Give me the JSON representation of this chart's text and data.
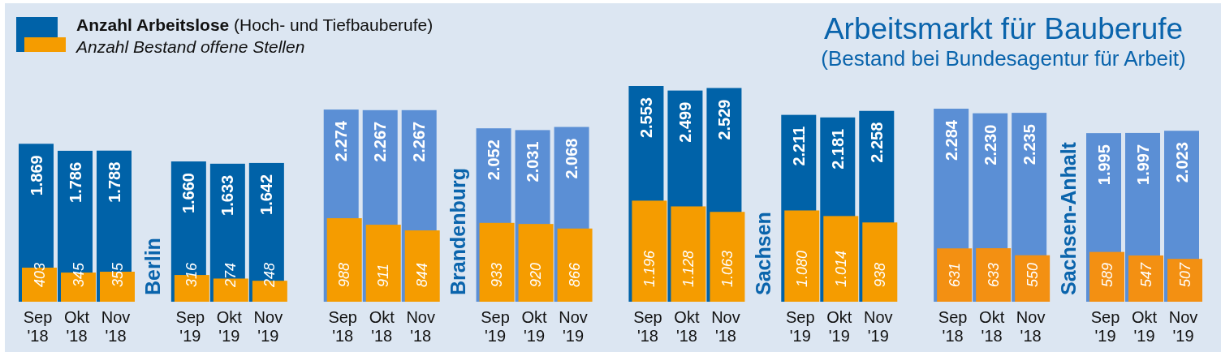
{
  "chart_data": {
    "type": "bar",
    "title": "Arbeitsmarkt für Bauberufe",
    "subtitle": "(Bestand bei Bundesagentur für Arbeit)",
    "categories": [
      "Sep '18",
      "Okt '18",
      "Nov '18",
      "Sep '19",
      "Okt '19",
      "Nov '19",
      "Sep '18",
      "Okt '18",
      "Nov '18",
      "Sep '19",
      "Okt '19",
      "Nov '19",
      "Sep '18",
      "Okt '18",
      "Nov '18",
      "Sep '19",
      "Okt '19",
      "Nov '19",
      "Sep '18",
      "Okt '18",
      "Nov '18",
      "Sep '19",
      "Okt '19",
      "Nov '19"
    ],
    "annotations": [
      "Berlin",
      "Brandenburg",
      "Sachsen",
      "Sachsen-Anhalt"
    ],
    "series": [
      {
        "name": "Anzahl Arbeitslose (Hoch- und Tiefbauberufe)",
        "color": "#0062a8",
        "colors": [
          "#0062a8",
          "#0062a8",
          "#0062a8",
          "#0062a8",
          "#0062a8",
          "#0062a8",
          "#5b8fd5",
          "#5b8fd5",
          "#5b8fd5",
          "#5b8fd5",
          "#5b8fd5",
          "#5b8fd5",
          "#0062a8",
          "#0062a8",
          "#0062a8",
          "#0062a8",
          "#0062a8",
          "#0062a8",
          "#5b8fd5",
          "#5b8fd5",
          "#5b8fd5",
          "#5b8fd5",
          "#5b8fd5",
          "#5b8fd5"
        ],
        "values": [
          1869,
          1786,
          1788,
          1660,
          1633,
          1642,
          2274,
          2267,
          2267,
          2052,
          2031,
          2068,
          2553,
          2499,
          2529,
          2211,
          2181,
          2258,
          2284,
          2230,
          2235,
          1995,
          1997,
          2023
        ],
        "value_labels": [
          "1.869",
          "1.786",
          "1.788",
          "1.660",
          "1.633",
          "1.642",
          "2.274",
          "2.267",
          "2.267",
          "2.052",
          "2.031",
          "2.068",
          "2.553",
          "2.499",
          "2.529",
          "2.211",
          "2.181",
          "2.258",
          "2.284",
          "2.230",
          "2.235",
          "1.995",
          "1.997",
          "2.023"
        ]
      },
      {
        "name": "Anzahl Bestand offene Stellen",
        "color": "#f59c00",
        "colors": [
          "#f59c00",
          "#f59c00",
          "#f59c00",
          "#f59c00",
          "#f59c00",
          "#f59c00",
          "#f59c00",
          "#f59c00",
          "#f59c00",
          "#f59c00",
          "#f59c00",
          "#f59c00",
          "#f59c00",
          "#f59c00",
          "#f59c00",
          "#f59c00",
          "#f59c00",
          "#f59c00",
          "#f39012",
          "#f39012",
          "#f39012",
          "#f39012",
          "#f39012",
          "#f39012"
        ],
        "values": [
          403,
          345,
          355,
          316,
          274,
          248,
          988,
          911,
          844,
          933,
          920,
          866,
          1196,
          1128,
          1063,
          1080,
          1014,
          938,
          631,
          633,
          550,
          589,
          547,
          507
        ],
        "value_labels": [
          "403",
          "345",
          "355",
          "316",
          "274",
          "248",
          "988",
          "911",
          "844",
          "933",
          "920",
          "866",
          "1.196",
          "1.128",
          "1.063",
          "1.080",
          "1.014",
          "938",
          "631",
          "633",
          "550",
          "589",
          "547",
          "507"
        ]
      }
    ],
    "legend": "top left"
  }
}
